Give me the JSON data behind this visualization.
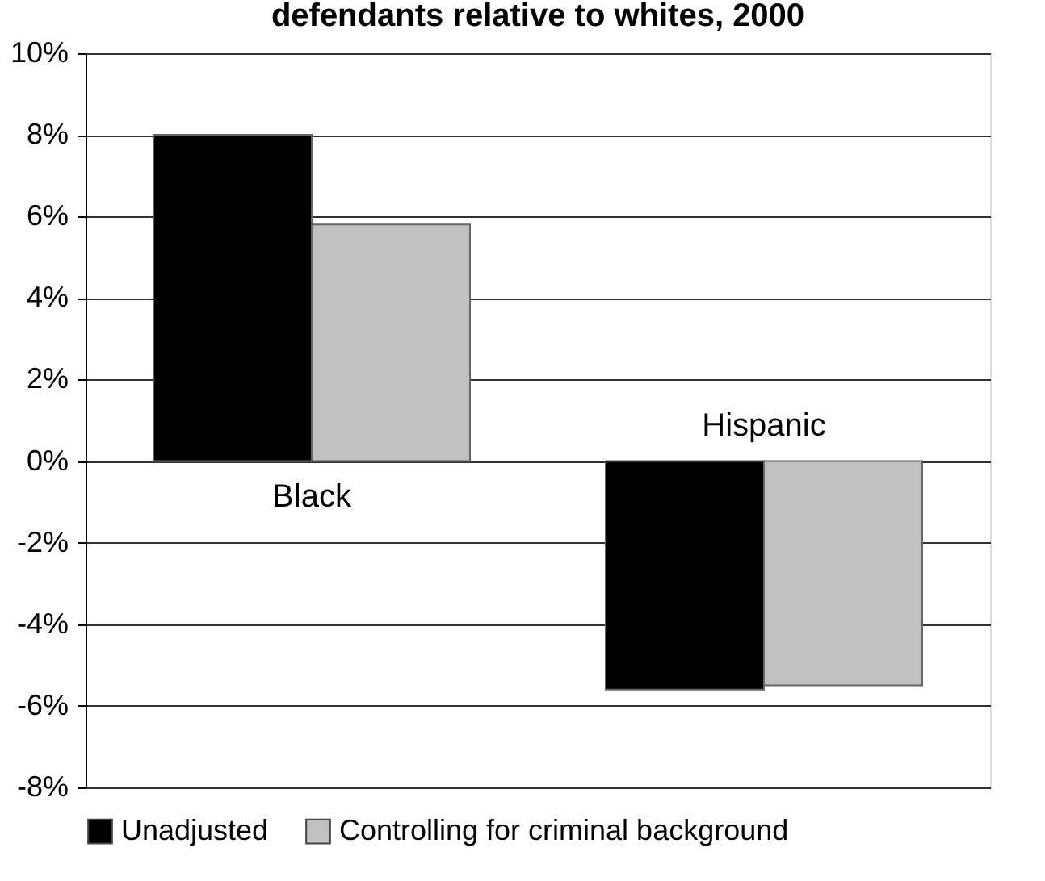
{
  "chart_data": {
    "type": "bar",
    "title": "defendants relative to whites, 2000",
    "categories": [
      "Black",
      "Hispanic"
    ],
    "series": [
      {
        "name": "Unadjusted",
        "color": "#000000",
        "values": [
          8.0,
          -5.6
        ]
      },
      {
        "name": "Controlling for criminal background",
        "color": "#c0c0c0",
        "values": [
          5.8,
          -5.5
        ]
      }
    ],
    "ylim": [
      -8,
      10
    ],
    "yticks": [
      {
        "value": -8,
        "label": "-8%"
      },
      {
        "value": -6,
        "label": "-6%"
      },
      {
        "value": -4,
        "label": "-4%"
      },
      {
        "value": -2,
        "label": "-2%"
      },
      {
        "value": 0,
        "label": "0%"
      },
      {
        "value": 2,
        "label": "2%"
      },
      {
        "value": 4,
        "label": "4%"
      },
      {
        "value": 6,
        "label": "6%"
      },
      {
        "value": 8,
        "label": "8%"
      },
      {
        "value": 10,
        "label": "10%"
      }
    ],
    "grid": "y",
    "legend": "bottom"
  }
}
